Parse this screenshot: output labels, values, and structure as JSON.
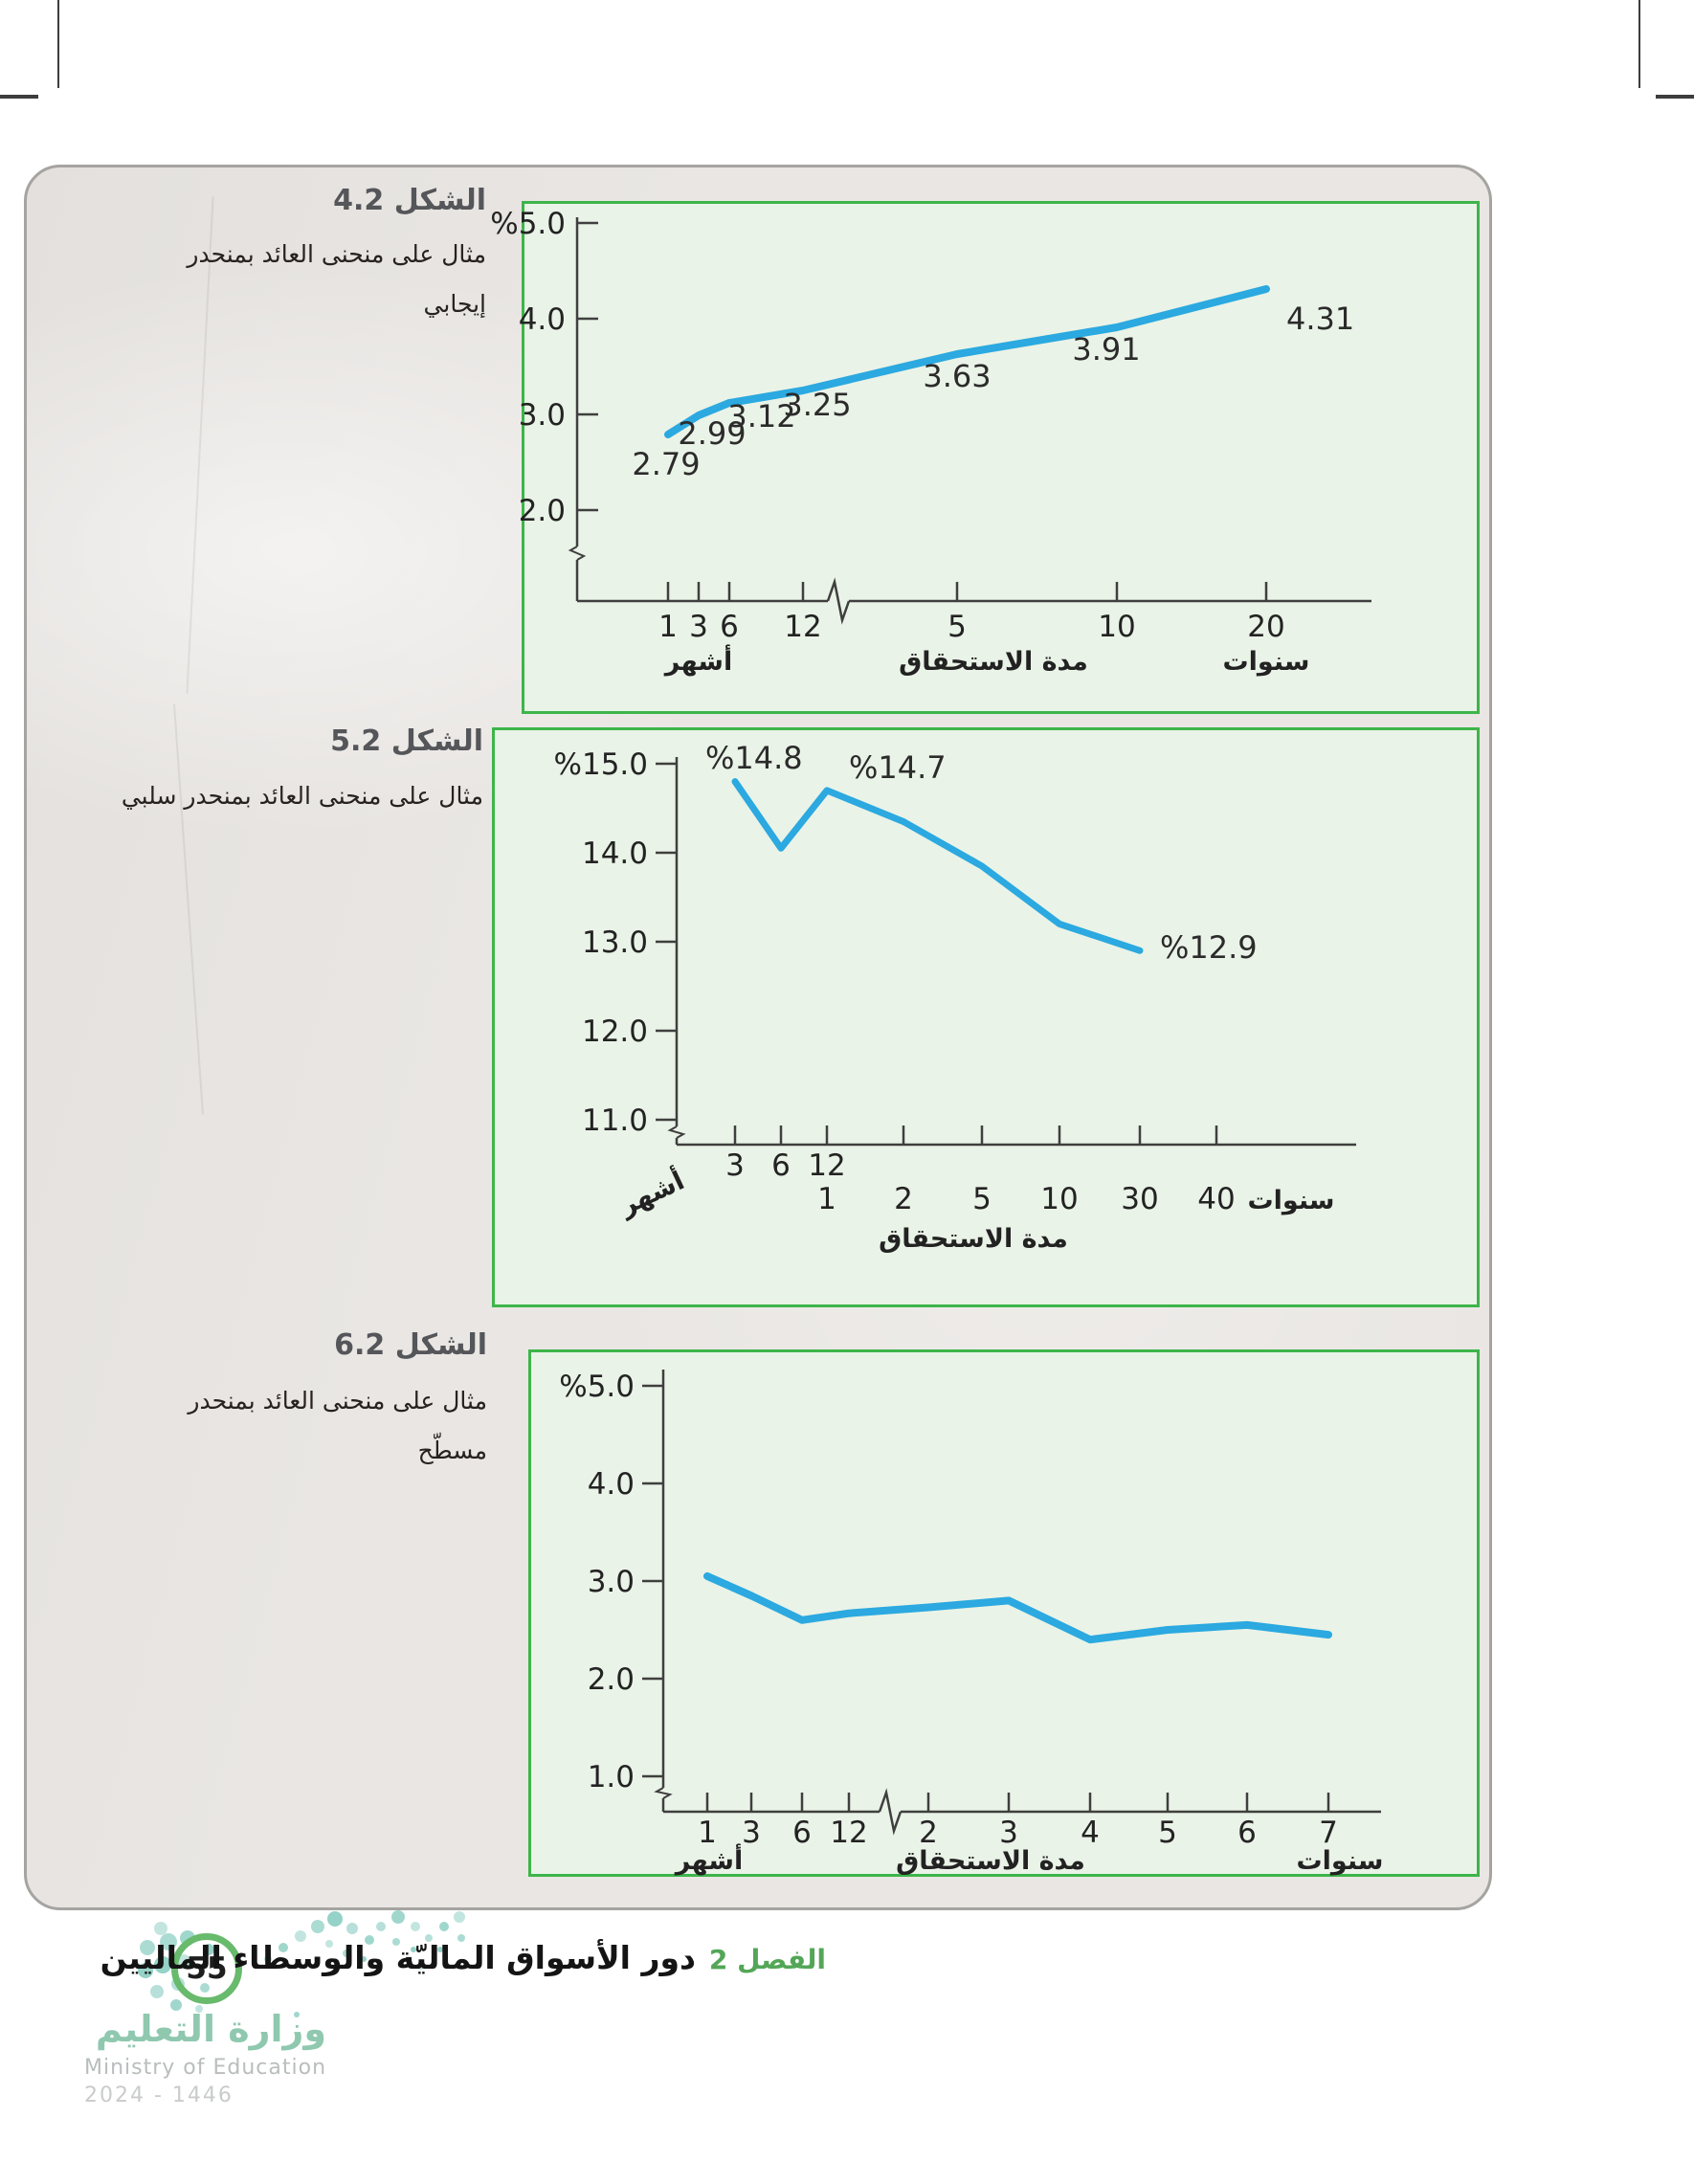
{
  "page": {
    "footer": {
      "page_number": "55",
      "chapter_label": "الفصل 2",
      "chapter_title": "دور الأسواق الماليّة والوسطاء الماليين",
      "ministry_name_ar": "وزارة التعليم",
      "ministry_name_en": "Ministry of Education",
      "edition_years": "2024 - 1446"
    }
  },
  "figures": [
    {
      "label": "الشكل 4.2",
      "caption_lines": [
        "مثال على منحنى العائد بمنحدر",
        "إيجابي"
      ]
    },
    {
      "label": "الشكل 5.2",
      "caption_lines": [
        "مثال على منحنى العائد بمنحدر سلبي"
      ]
    },
    {
      "label": "الشكل 6.2",
      "caption_lines": [
        "مثال على منحنى العائد بمنحدر",
        "مسطّح"
      ]
    }
  ],
  "chart_data": [
    {
      "type": "line",
      "figure": "الشكل 4.2",
      "title": "مثال على منحنى العائد بمنحدر إيجابي",
      "xlabel": "مدة الاستحقاق",
      "x_unit_months": "أشهر",
      "x_unit_years": "سنوات",
      "x_tick_labels_months": [
        "1",
        "3",
        "6",
        "12"
      ],
      "x_tick_labels_years": [
        "5",
        "10",
        "20"
      ],
      "categories": [
        "1m",
        "3m",
        "6m",
        "12m",
        "5y",
        "10y",
        "20y"
      ],
      "values": [
        2.79,
        2.99,
        3.12,
        3.25,
        3.63,
        3.91,
        4.31
      ],
      "point_labels": [
        "2.79",
        "2.99",
        "3.12",
        "3.25",
        "3.63",
        "3.91",
        "4.31"
      ],
      "y_tick_labels": [
        "%5.0",
        "4.0",
        "3.0",
        "2.0"
      ],
      "y_tick_values": [
        5.0,
        4.0,
        3.0,
        2.0
      ],
      "ylim": [
        2.0,
        5.0
      ],
      "x_axis_break": true,
      "y_axis_break": true,
      "grid": false,
      "line_color": "#2BA9E0"
    },
    {
      "type": "line",
      "figure": "الشكل 5.2",
      "title": "مثال على منحنى العائد بمنحدر سلبي",
      "xlabel": "مدة الاستحقاق",
      "x_unit_months": "أشهر",
      "x_unit_years": "سنوات",
      "x_tick_labels_months": [
        "3",
        "6",
        "12"
      ],
      "x_tick_labels_years": [
        "1",
        "2",
        "5",
        "10",
        "30",
        "40"
      ],
      "categories": [
        "3m",
        "6m",
        "1y",
        "2y",
        "5y",
        "10y",
        "30y"
      ],
      "values": [
        14.8,
        14.05,
        14.7,
        14.35,
        13.85,
        13.2,
        12.9
      ],
      "labeled_points": [
        {
          "index": 0,
          "label": "%14.8"
        },
        {
          "index": 2,
          "label": "%14.7"
        },
        {
          "index": 6,
          "label": "%12.9"
        }
      ],
      "y_tick_labels": [
        "%15.0",
        "14.0",
        "13.0",
        "12.0",
        "11.0"
      ],
      "y_tick_values": [
        15.0,
        14.0,
        13.0,
        12.0,
        11.0
      ],
      "ylim": [
        11.0,
        15.0
      ],
      "x_axis_break": false,
      "y_axis_break": true,
      "grid": false,
      "line_color": "#2BA9E0"
    },
    {
      "type": "line",
      "figure": "الشكل 6.2",
      "title": "مثال على منحنى العائد بمنحدر مسطّح",
      "xlabel": "مدة الاستحقاق",
      "x_unit_months": "أشهر",
      "x_unit_years": "سنوات",
      "x_tick_labels_months": [
        "1",
        "3",
        "6",
        "12"
      ],
      "x_tick_labels_years": [
        "2",
        "3",
        "4",
        "5",
        "6",
        "7"
      ],
      "categories": [
        "1m",
        "3m",
        "6m",
        "12m",
        "2y",
        "3y",
        "4y",
        "5y",
        "6y",
        "7y"
      ],
      "values": [
        3.05,
        2.85,
        2.6,
        2.67,
        2.73,
        2.8,
        2.4,
        2.5,
        2.55,
        2.45
      ],
      "y_tick_labels": [
        "%5.0",
        "4.0",
        "3.0",
        "2.0",
        "1.0"
      ],
      "y_tick_values": [
        5.0,
        4.0,
        3.0,
        2.0,
        1.0
      ],
      "ylim": [
        1.0,
        5.0
      ],
      "x_axis_break": true,
      "y_axis_break": true,
      "grid": false,
      "line_color": "#2BA9E0"
    }
  ],
  "colors": {
    "line_blue": "#2BA9E0",
    "chart_border_green": "#3DB54A",
    "chart_background": "#EAF3E7",
    "accent_green": "#53A657",
    "dots_teal": "#8FD0C4"
  }
}
